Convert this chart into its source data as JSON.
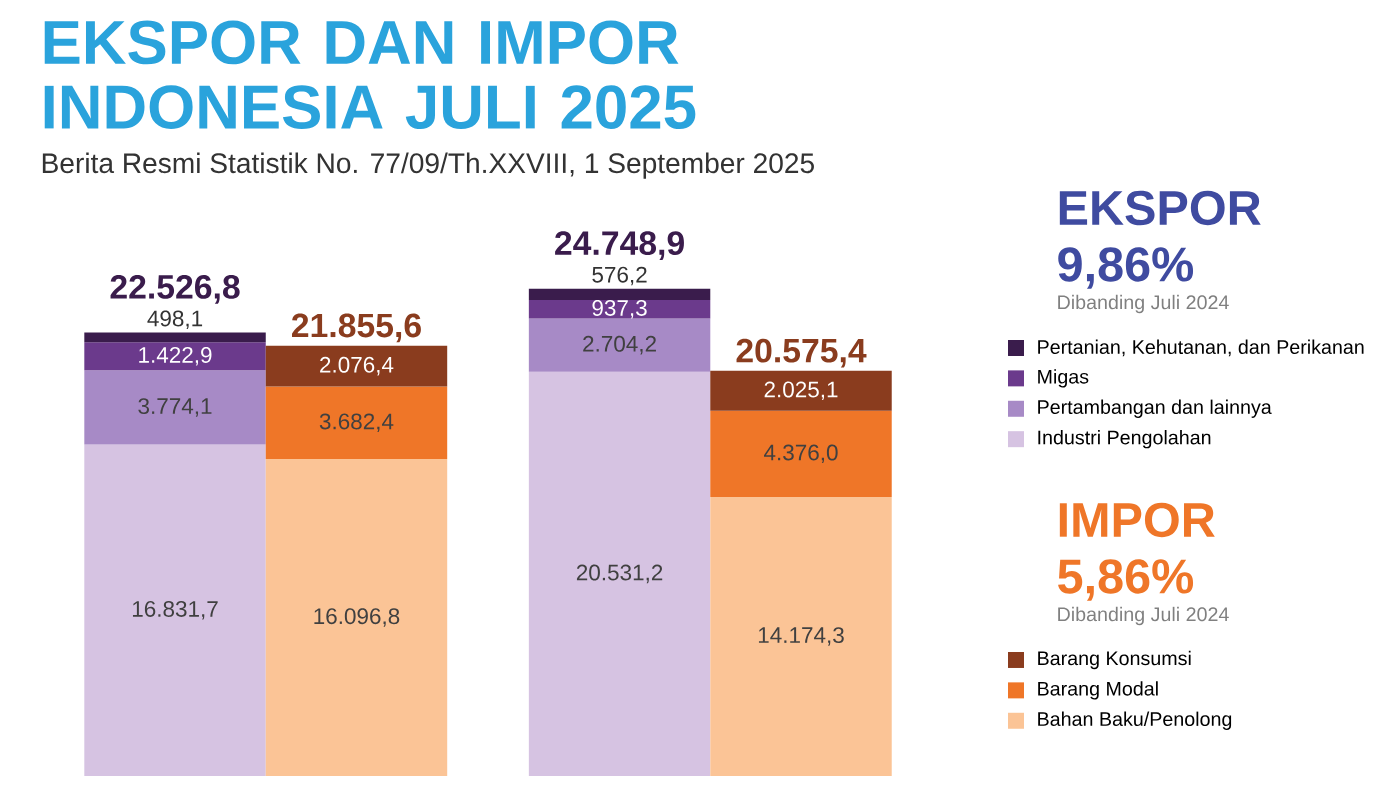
{
  "chart_data": {
    "type": "bar",
    "title": "EKSPOR DAN IMPOR INDONESIA JULI 2025",
    "subtitle": "Berita Resmi Statistik No. 77/09/Th.XXVIII, 1 September 2025",
    "categories": [
      null,
      null,
      null,
      null
    ],
    "stacked": true,
    "tick_labels": false,
    "legend": "right",
    "series": [
      {
        "name": "Industri Pengolahan",
        "color": "#d6c3e2",
        "values": [
          16831.7,
          null,
          20531.2,
          null
        ],
        "value_labels": [
          "16.831,7",
          null,
          "20.531,2",
          null
        ]
      },
      {
        "name": "Pertambangan dan lainnya",
        "color": "#a78ac6",
        "values": [
          3774.1,
          null,
          2704.2,
          null
        ],
        "value_labels": [
          "3.774,1",
          null,
          "2.704,2",
          null
        ]
      },
      {
        "name": "Migas",
        "color": "#6b3a8c",
        "values": [
          1422.9,
          null,
          937.3,
          null
        ],
        "value_labels": [
          "1.422,9",
          null,
          "937,3",
          null
        ]
      },
      {
        "name": "Pertanian, Kehutanan, dan Perikanan",
        "color": "#3a1c4c",
        "values": [
          498.1,
          null,
          576.2,
          null
        ],
        "value_labels": [
          "498,1",
          null,
          "576,2",
          null
        ]
      },
      {
        "name": "Bahan Baku/Penolong",
        "color": "#fbc496",
        "values": [
          null,
          16096.8,
          null,
          14174.3
        ],
        "value_labels": [
          null,
          "16.096,8",
          null,
          "14.174,3"
        ]
      },
      {
        "name": "Barang Modal",
        "color": "#ef7628",
        "values": [
          null,
          3682.4,
          null,
          4376.0
        ],
        "value_labels": [
          null,
          "3.682,4",
          null,
          "4.376,0"
        ]
      },
      {
        "name": "Barang Konsumsi",
        "color": "#8a3c1e",
        "values": [
          null,
          2076.4,
          null,
          2025.1
        ],
        "value_labels": [
          null,
          "2.076,4",
          null,
          "2.025,1"
        ]
      }
    ],
    "totals": [
      "22.526,8",
      "21.855,6",
      "24.748,9",
      "20.575,4"
    ],
    "annotations": [
      "EKSPOR",
      "9,86%",
      "Dibanding Juli 2024",
      "IMPOR",
      "5,86%",
      "Dibanding Juli 2024"
    ]
  }
}
